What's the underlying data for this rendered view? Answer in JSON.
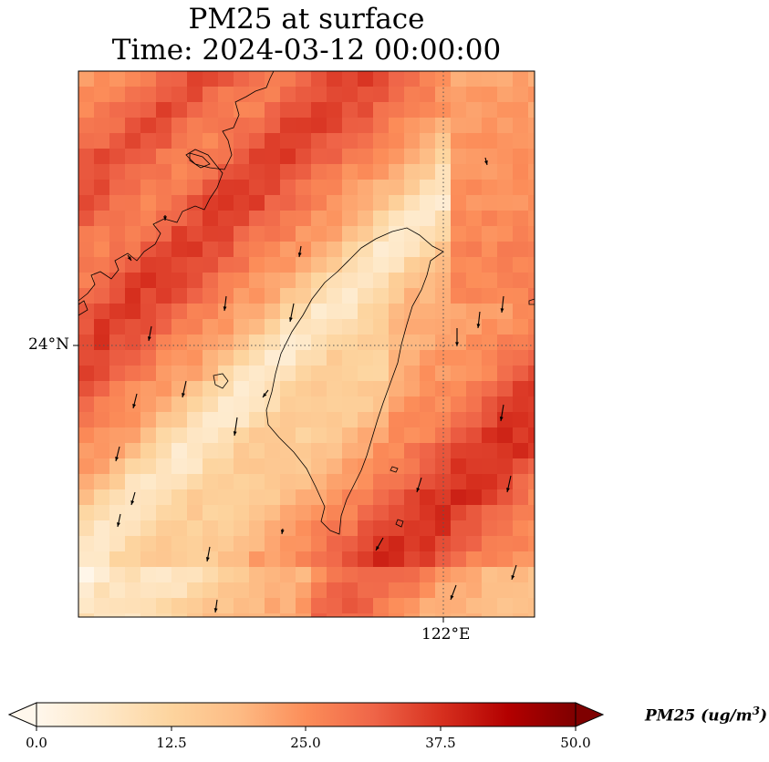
{
  "title": {
    "line1": "PM25 at surface",
    "line2": "Time: 2024-03-12 00:00:00"
  },
  "map": {
    "lat_label": "24°N",
    "lon_label": "122°E",
    "extent": {
      "lon_min": 119.3,
      "lon_max": 122.7,
      "lat_min": 22.0,
      "lat_max": 26.0
    },
    "gridlines": {
      "lat": 24.0,
      "lon": 122.0,
      "style": "dotted"
    },
    "colormap": "OrRd",
    "vmin": 0.0,
    "vmax": 50.0
  },
  "colorbar": {
    "ticks": [
      "0.0",
      "12.5",
      "25.0",
      "37.5",
      "50.0"
    ],
    "label_main": "PM25 (ug/m",
    "label_sup": "3",
    "label_close": ")",
    "extend": "both"
  }
}
